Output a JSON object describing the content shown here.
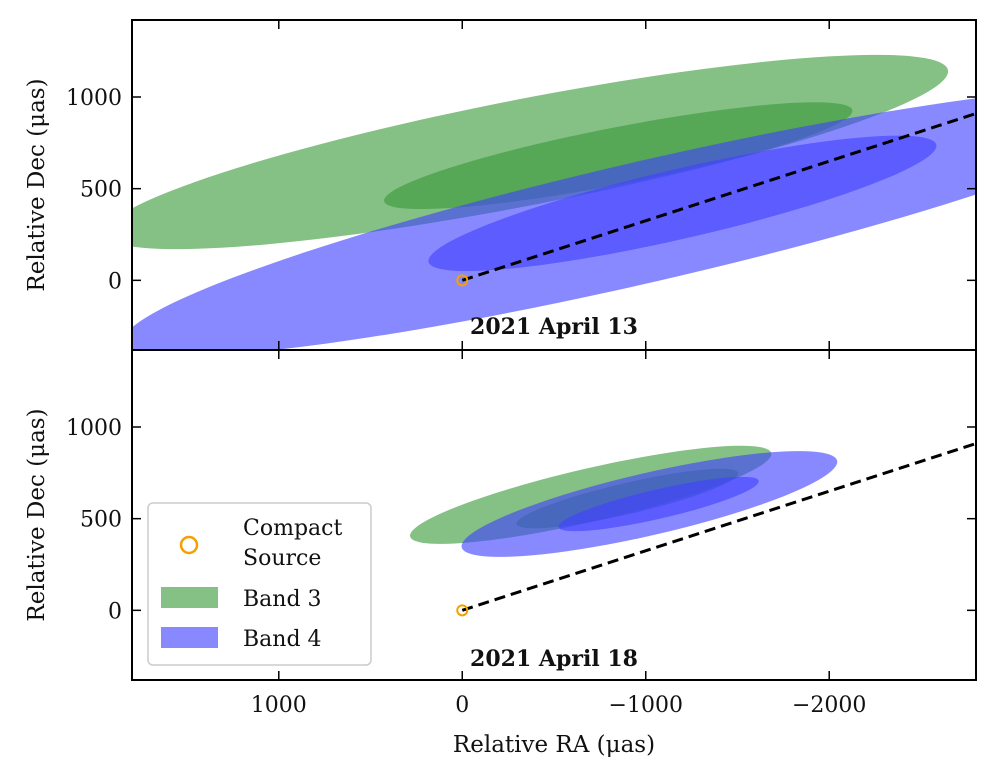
{
  "chart_data": {
    "type": "scatter",
    "description_free": true,
    "xlabel": "Relative RA (μas)",
    "ylabel": "Relative Dec (μas)",
    "xlim": [
      1800,
      -2800
    ],
    "ylim": [
      -380,
      1420
    ],
    "xticks": [
      1000,
      0,
      -1000,
      -2000
    ],
    "xtick_labels": [
      "1000",
      "0",
      "−1000",
      "−2000"
    ],
    "yticks": [
      0,
      500,
      1000
    ],
    "ytick_labels": [
      "0",
      "500",
      "1000"
    ],
    "legend": {
      "placement": "lower-left",
      "entries": [
        {
          "key": "compact",
          "label_line1": "Compact",
          "label_line2": "Source",
          "color": "#f5a000"
        },
        {
          "key": "band3",
          "label": "Band 3",
          "color": "#3a9a3a"
        },
        {
          "key": "band4",
          "label": "Band 4",
          "color": "#4040ff"
        }
      ]
    },
    "panels": [
      {
        "title": "2021 April 13",
        "compact_source": {
          "ra": 0,
          "dec": 0
        },
        "direction_line": {
          "ra": [
            0,
            -2800
          ],
          "dec": [
            0,
            910
          ]
        },
        "ellipses": [
          {
            "band": "Band 3",
            "level": "outer",
            "ra": -350,
            "dec": 700,
            "semi_major": 2340,
            "semi_minor": 290,
            "angle_deg": 11,
            "color": "#3a9a3a",
            "opacity": 0.62
          },
          {
            "band": "Band 3",
            "level": "inner",
            "ra": -850,
            "dec": 680,
            "semi_major": 1300,
            "semi_minor": 155,
            "angle_deg": 11,
            "color": "#3a9a3a",
            "opacity": 0.62
          },
          {
            "band": "Band 4",
            "level": "outer",
            "ra": -1000,
            "dec": 320,
            "semi_major": 2920,
            "semi_minor": 330,
            "angle_deg": 13,
            "color": "#4040ff",
            "opacity": 0.62
          },
          {
            "band": "Band 4",
            "level": "inner",
            "ra": -1200,
            "dec": 420,
            "semi_major": 1420,
            "semi_minor": 190,
            "angle_deg": 13,
            "color": "#4040ff",
            "opacity": 0.62
          }
        ]
      },
      {
        "title": "2021 April 18",
        "compact_source": {
          "ra": 0,
          "dec": 0
        },
        "direction_line": {
          "ra": [
            0,
            -2800
          ],
          "dec": [
            0,
            910
          ]
        },
        "ellipses": [
          {
            "band": "Band 3",
            "level": "outer",
            "ra": -700,
            "dec": 630,
            "semi_major": 1010,
            "semi_minor": 145,
            "angle_deg": 13,
            "color": "#3a9a3a",
            "opacity": 0.62
          },
          {
            "band": "Band 3",
            "level": "inner",
            "ra": -900,
            "dec": 610,
            "semi_major": 620,
            "semi_minor": 85,
            "angle_deg": 13,
            "color": "#3a9a3a",
            "opacity": 0.62
          },
          {
            "band": "Band 4",
            "level": "outer",
            "ra": -1020,
            "dec": 580,
            "semi_major": 1050,
            "semi_minor": 170,
            "angle_deg": 13,
            "color": "#4040ff",
            "opacity": 0.62
          },
          {
            "band": "Band 4",
            "level": "inner",
            "ra": -1070,
            "dec": 580,
            "semi_major": 560,
            "semi_minor": 80,
            "angle_deg": 13,
            "color": "#4040ff",
            "opacity": 0.62
          }
        ]
      }
    ]
  }
}
